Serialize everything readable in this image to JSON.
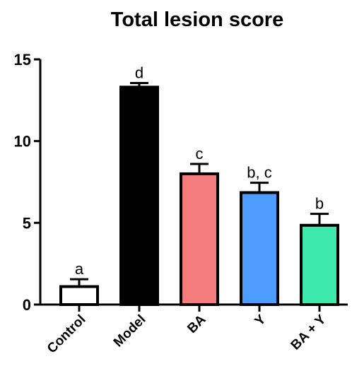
{
  "chart_data": {
    "type": "bar",
    "title": "Total lesion score",
    "xlabel": "",
    "ylabel": "",
    "ylim": [
      0,
      15
    ],
    "yticks": [
      "0",
      "5",
      "10",
      "15"
    ],
    "categories": [
      "Control",
      "Model",
      "BA",
      "Y",
      "BA + Y"
    ],
    "values": [
      1.1,
      13.3,
      8.0,
      6.85,
      4.85
    ],
    "errors": [
      0.45,
      0.25,
      0.6,
      0.6,
      0.7
    ],
    "significance": [
      "a",
      "d",
      "c",
      "b, c",
      "b"
    ],
    "colors": [
      "#ffffff",
      "#000000",
      "#f47c7c",
      "#4d9cff",
      "#3ce8aa"
    ],
    "grid": false
  }
}
